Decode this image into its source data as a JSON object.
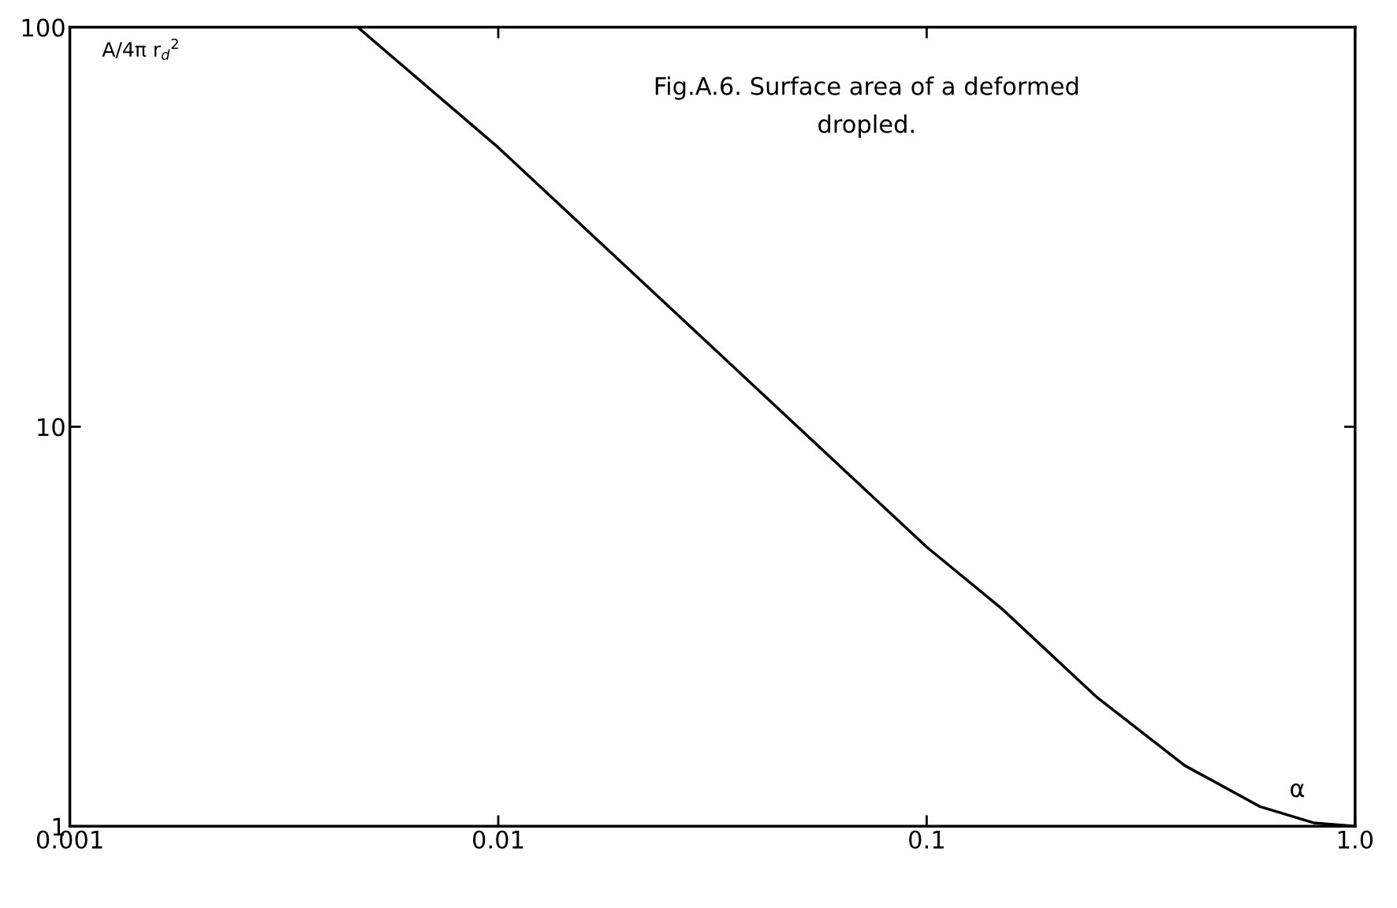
{
  "chart_data": {
    "type": "line",
    "title": "Fig.A.6. Surface area of a deformed\ndropled.",
    "xlabel": "α",
    "ylabel": "A/4π r$_{d}$$^{2}$",
    "x": [
      0.0047,
      0.01,
      0.02,
      0.05,
      0.1,
      0.15,
      0.25,
      0.4,
      0.6,
      0.8,
      1.0
    ],
    "series": [
      {
        "color": "#000000",
        "values": [
          100,
          50,
          25,
          10,
          5,
          3.5,
          2.1,
          1.42,
          1.12,
          1.02,
          1.0
        ]
      }
    ],
    "log": "xy",
    "xlim": [
      0.001,
      1.0
    ],
    "ylim": [
      1,
      100
    ],
    "xticks": [
      0.001,
      0.01,
      0.1,
      {
        "value": 1.0,
        "label": "1.0"
      }
    ],
    "yticks": [
      1,
      10,
      100
    ],
    "grid": false,
    "legend": false,
    "marker": "none",
    "line_style": "solid"
  }
}
